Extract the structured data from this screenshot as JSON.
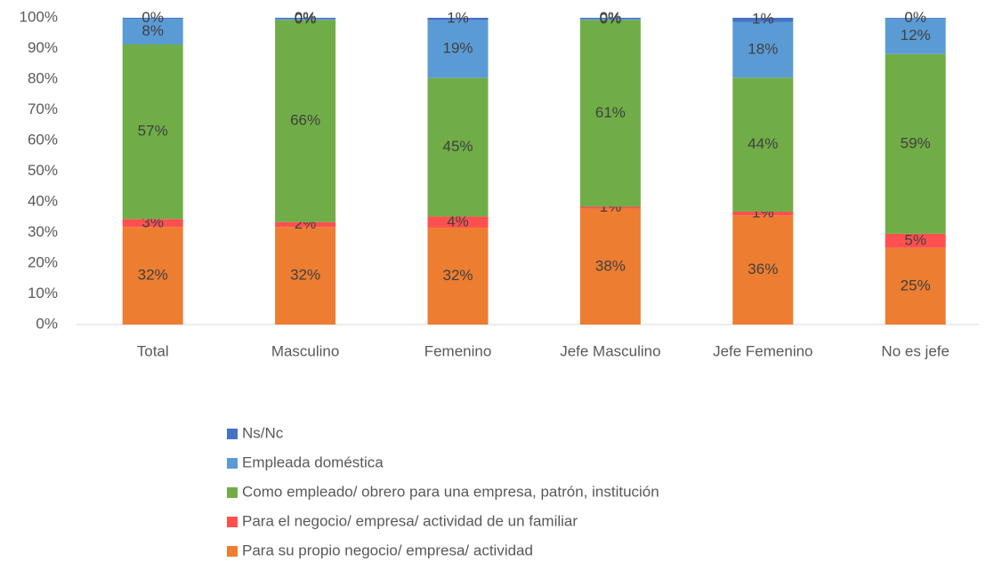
{
  "chart_data": {
    "type": "stacked_bar",
    "categories": [
      "Total",
      "Masculino",
      "Femenino",
      "Jefe Masculino",
      "Jefe Femenino",
      "No es jefe"
    ],
    "series": [
      {
        "name": "Para su propio negocio/ empresa/ actividad",
        "color": "#ED7D31",
        "values": [
          31.8,
          31.8,
          31.6,
          37.8,
          35.6,
          25.0
        ],
        "value_labels": [
          "32%",
          "32%",
          "32%",
          "38%",
          "36%",
          "25%"
        ]
      },
      {
        "name": "Para el negocio/ empresa/ actividad de un familiar",
        "color": "#FF5050",
        "values": [
          2.6,
          1.6,
          3.6,
          0.6,
          1.2,
          4.6
        ],
        "value_labels": [
          "3%",
          "2%",
          "4%",
          "1%",
          "1%",
          "5%"
        ]
      },
      {
        "name": "Como empleado/ obrero para una empresa, patrón, institución",
        "color": "#70AD47",
        "values": [
          56.9,
          65.9,
          45.2,
          60.9,
          43.7,
          58.6
        ],
        "value_labels": [
          "57%",
          "66%",
          "45%",
          "61%",
          "44%",
          "59%"
        ]
      },
      {
        "name": "Empleada doméstica",
        "color": "#5B9BD5",
        "values": [
          8.4,
          0.3,
          18.9,
          0.3,
          18.2,
          11.6
        ],
        "value_labels": [
          "8%",
          "0%",
          "19%",
          "0%",
          "18%",
          "12%"
        ]
      },
      {
        "name": "Ns/Nc",
        "color": "#4472C4",
        "values": [
          0.3,
          0.4,
          0.7,
          0.4,
          1.3,
          0.2
        ],
        "value_labels": [
          "0%",
          "0%",
          "1%",
          "0%",
          "1%",
          "0%"
        ]
      }
    ],
    "ylim": [
      0,
      100
    ],
    "yticks": [
      {
        "value": 0,
        "label": "0%"
      },
      {
        "value": 10,
        "label": "10%"
      },
      {
        "value": 20,
        "label": "20%"
      },
      {
        "value": 30,
        "label": "30%"
      },
      {
        "value": 40,
        "label": "40%"
      },
      {
        "value": 50,
        "label": "50%"
      },
      {
        "value": 60,
        "label": "60%"
      },
      {
        "value": 70,
        "label": "70%"
      },
      {
        "value": 80,
        "label": "80%"
      },
      {
        "value": 90,
        "label": "90%"
      },
      {
        "value": 100,
        "label": "100%"
      }
    ],
    "grid": false,
    "legend": "bottom"
  }
}
